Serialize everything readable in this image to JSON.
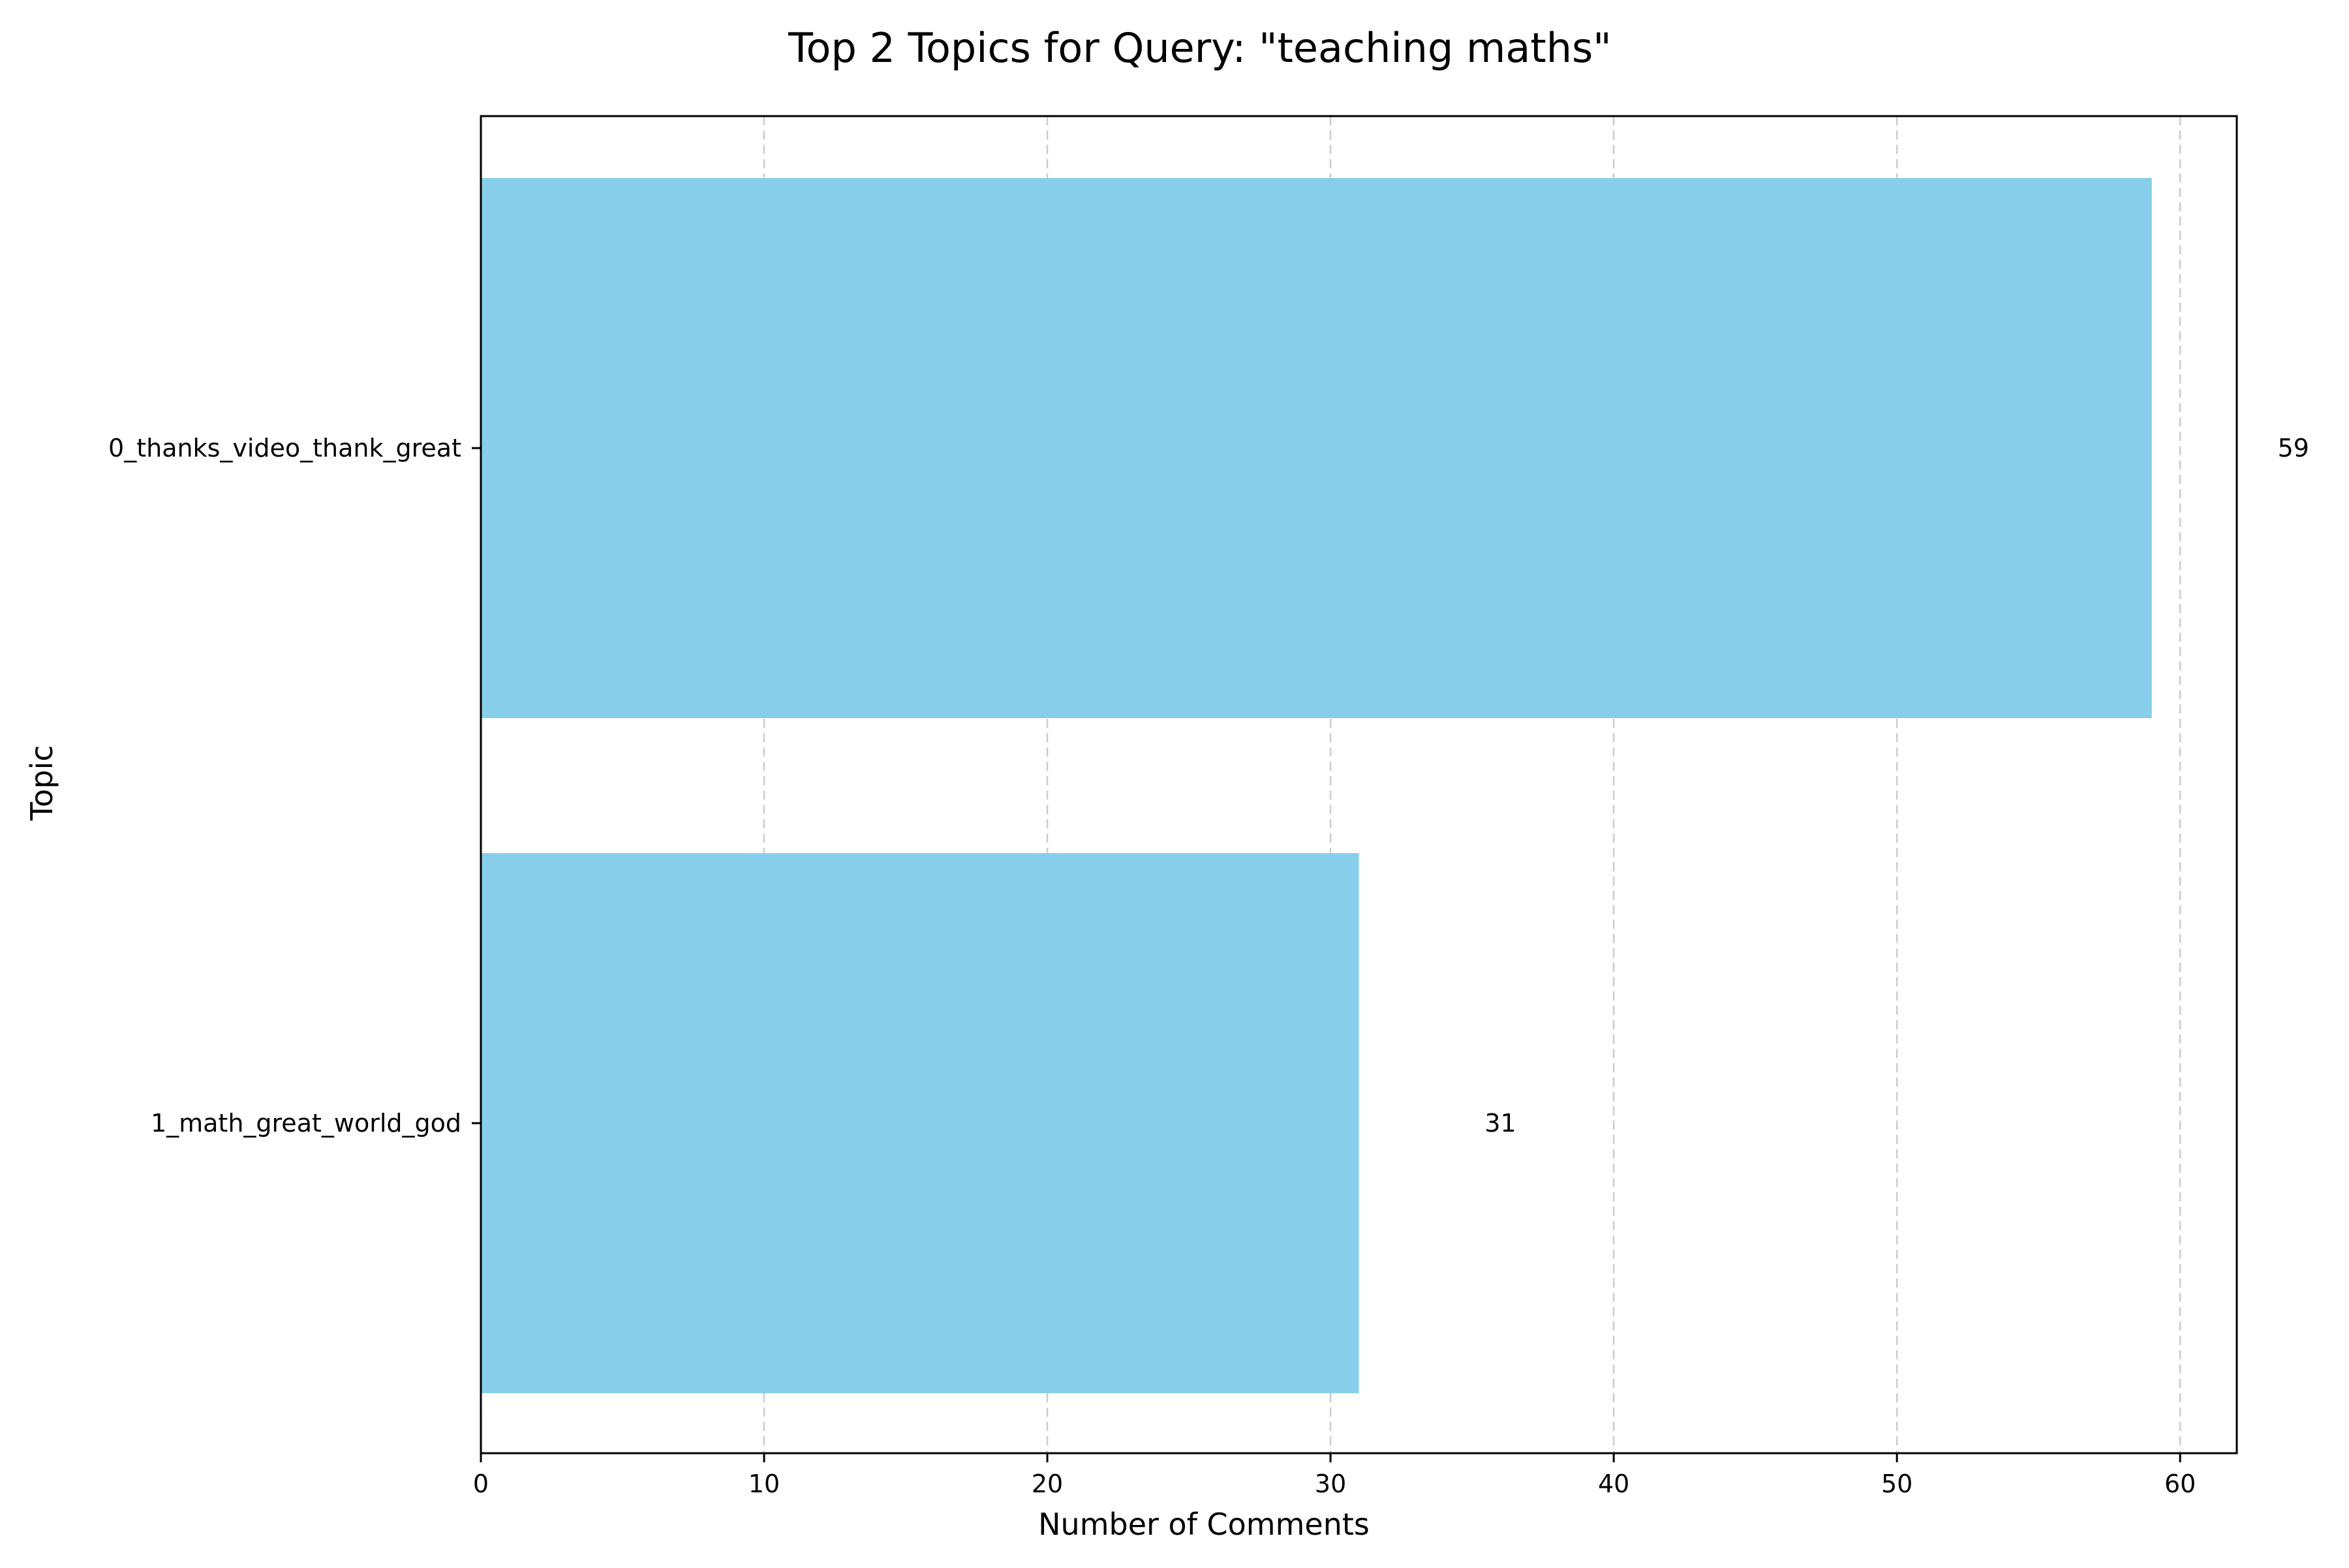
{
  "chart_data": {
    "type": "bar",
    "orientation": "horizontal",
    "title": "Top 2 Topics for Query: \"teaching maths\"",
    "xlabel": "Number of Comments",
    "ylabel": "Topic",
    "categories": [
      "0_thanks_video_thank_great",
      "1_math_great_world_god"
    ],
    "values": [
      59,
      31
    ],
    "data_labels": [
      "59",
      "31"
    ],
    "xlim": [
      0,
      62
    ],
    "xticks": [
      0,
      10,
      20,
      30,
      40,
      50,
      60
    ],
    "xtick_labels": [
      "0",
      "10",
      "20",
      "30",
      "40",
      "50",
      "60"
    ],
    "grid": {
      "x": true,
      "y": false,
      "style": "dashed"
    },
    "bar_color": "#87CEEB",
    "grid_color": "#cccccc"
  }
}
